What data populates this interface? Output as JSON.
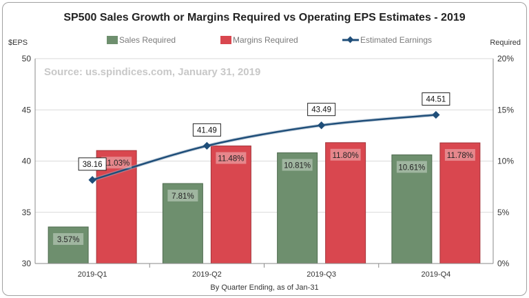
{
  "chart_data": {
    "type": "bar",
    "title": "SP500 Sales Growth or Margins Required vs Operating EPS Estimates - 2019",
    "source": "Source: us.spindices.com, January 31, 2019",
    "xlabel": "By Quarter Ending, as of Jan-31",
    "ylabel_left": "$EPS",
    "ylabel_right": "Required",
    "categories": [
      "2019-Q1",
      "2019-Q2",
      "2019-Q3",
      "2019-Q4"
    ],
    "y_left": {
      "min": 30,
      "max": 50,
      "ticks": [
        "30",
        "35",
        "40",
        "45",
        "50"
      ]
    },
    "y_right": {
      "min": 0,
      "max": 20,
      "ticks": [
        "0%",
        "5%",
        "10%",
        "15%",
        "20%"
      ]
    },
    "series": [
      {
        "name": "Sales Required",
        "kind": "bar",
        "axis": "right",
        "color": "#6e8f6e",
        "values": [
          3.57,
          7.81,
          10.81,
          10.61
        ],
        "labels": [
          "3.57%",
          "7.81%",
          "10.81%",
          "10.61%"
        ]
      },
      {
        "name": "Margins Required",
        "kind": "bar",
        "axis": "right",
        "color": "#d9474f",
        "values": [
          11.03,
          11.48,
          11.8,
          11.78
        ],
        "labels": [
          "11.03%",
          "11.48%",
          "11.80%",
          "11.78%"
        ]
      },
      {
        "name": "Estimated Earnings",
        "kind": "line",
        "axis": "left",
        "color": "#1f4e79",
        "values": [
          38.16,
          41.49,
          43.49,
          44.51
        ],
        "labels": [
          "38.16",
          "41.49",
          "43.49",
          "44.51"
        ]
      }
    ],
    "legend": "top-center"
  }
}
